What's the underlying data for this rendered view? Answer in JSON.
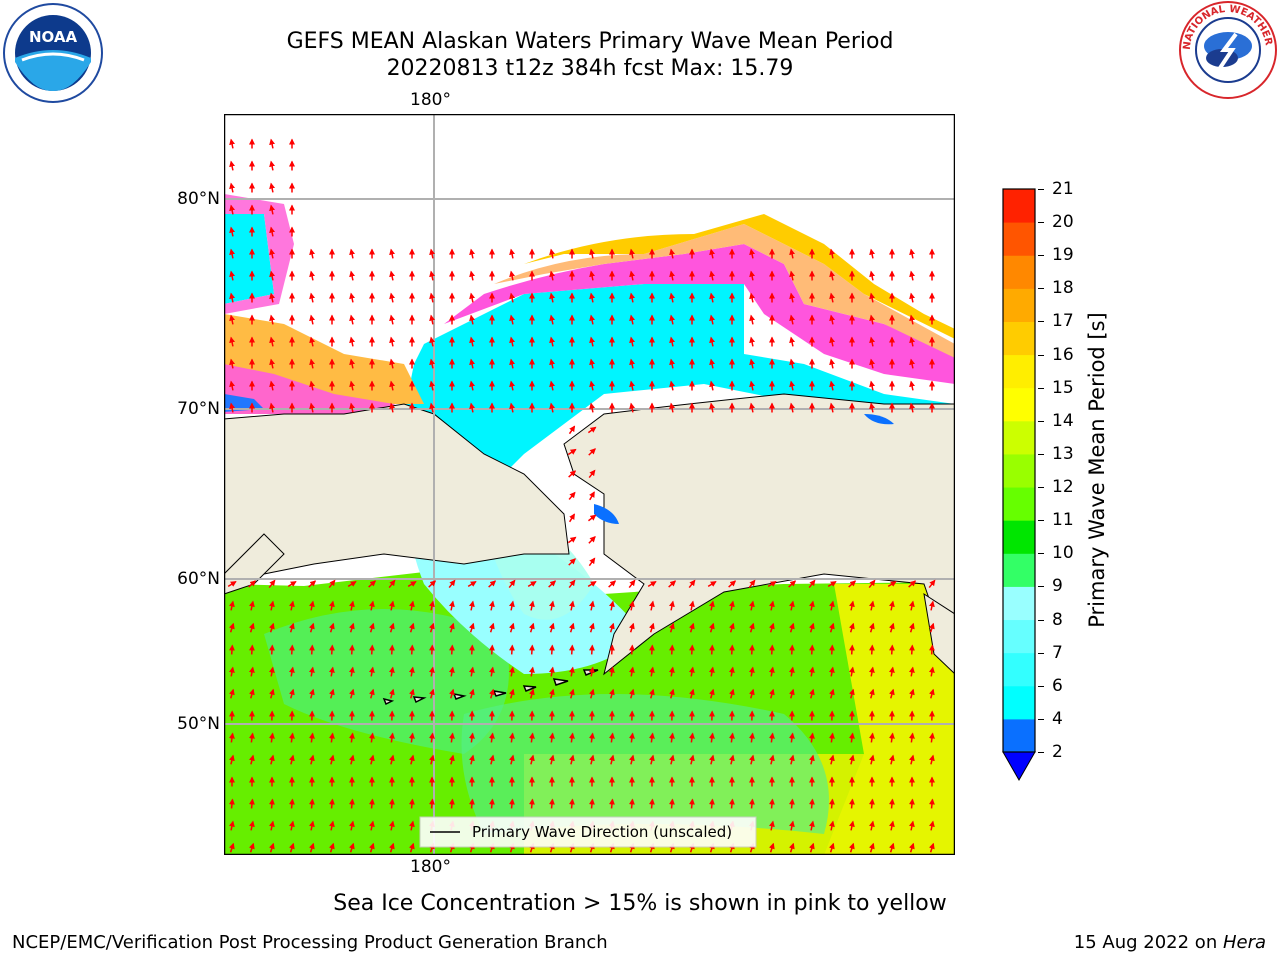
{
  "header": {
    "title_line1": "GEFS MEAN Alaskan Waters Primary Wave Mean Period",
    "title_line2": "20220813 t12z 384h fcst   Max: 15.79"
  },
  "logos": {
    "left": "NOAA",
    "right": "NATIONAL WEATHER SERVICE"
  },
  "map": {
    "lon_label_top": "180°",
    "lon_label_bottom": "180°",
    "lat_labels": [
      "80°N",
      "70°N",
      "60°N",
      "50°N"
    ],
    "legend_text": "Primary Wave Direction (unscaled)",
    "land_color": "#efecdc",
    "arrow_color": "#ff0000"
  },
  "colorbar": {
    "label": "Primary Wave Mean Period [s]",
    "ticks": [
      "2",
      "4",
      "6",
      "7",
      "8",
      "9",
      "10",
      "11",
      "12",
      "13",
      "14",
      "15",
      "16",
      "17",
      "18",
      "19",
      "20",
      "21"
    ],
    "colors": [
      "#0a70ff",
      "#00ffff",
      "#33ffff",
      "#66ffff",
      "#99ffff",
      "#33ff66",
      "#00e600",
      "#66ff00",
      "#99ff00",
      "#ccff00",
      "#ffff00",
      "#ffee00",
      "#ffcc00",
      "#ffaa00",
      "#ff8800",
      "#ff5500",
      "#ff2200"
    ],
    "extend_color": "#0000ff"
  },
  "notes": {
    "sea_ice": "Sea Ice Concentration > 15% is shown in pink to yellow"
  },
  "footer": {
    "left": "NCEP/EMC/Verification Post Processing Product Generation Branch",
    "right_date": "15 Aug 2022 on ",
    "right_host": "Hera"
  }
}
